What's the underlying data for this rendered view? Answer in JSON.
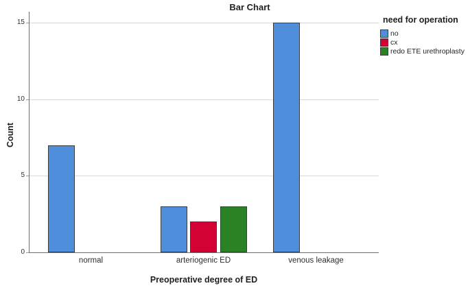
{
  "title": "Bar Chart",
  "legend": {
    "title": "need for operation",
    "items": [
      {
        "label": "no",
        "color": "#4E8EDB"
      },
      {
        "label": "cx",
        "color": "#D40234"
      },
      {
        "label": "redo ETE urethroplasty",
        "color": "#2B8126"
      }
    ]
  },
  "chart_data": {
    "type": "bar",
    "title": "Bar Chart",
    "xlabel": "Preoperative degree of ED",
    "ylabel": "Count",
    "categories": [
      "normal",
      "arteriogenic ED",
      "venous leakage"
    ],
    "series": [
      {
        "name": "no",
        "color": "#4E8EDB",
        "values": [
          7,
          3,
          15
        ]
      },
      {
        "name": "cx",
        "color": "#D40234",
        "values": [
          null,
          2,
          null
        ]
      },
      {
        "name": "redo ETE urethroplasty",
        "color": "#2B8126",
        "values": [
          null,
          3,
          null
        ]
      }
    ],
    "yticks": [
      0,
      5,
      10,
      15
    ],
    "ylim": [
      0,
      15.7
    ],
    "grid": "horizontal",
    "legend_position": "top-right",
    "legend_title": "need for operation"
  }
}
